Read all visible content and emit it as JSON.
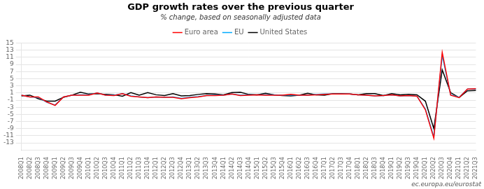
{
  "chart_data": {
    "type": "line",
    "title": "GDP growth rates over the previous quarter",
    "subtitle": "% change, based on seasonally adjusted data",
    "annotations": [
      "ec.europa.eu/eurostat"
    ],
    "categories": [
      "2008Q1",
      "2008Q2",
      "2008Q3",
      "2008Q4",
      "2009Q1",
      "2009Q2",
      "2009Q3",
      "2009Q4",
      "2010Q1",
      "2010Q2",
      "2010Q3",
      "2010Q4",
      "2011Q1",
      "2011Q2",
      "2011Q3",
      "2011Q4",
      "2012Q1",
      "2012Q2",
      "2012Q3",
      "2012Q4",
      "2013Q1",
      "2013Q2",
      "2013Q3",
      "2013Q4",
      "2014Q1",
      "2014Q2",
      "2014Q3",
      "2014Q4",
      "2015Q1",
      "2015Q2",
      "2015Q3",
      "2015Q4",
      "2016Q1",
      "2016Q2",
      "2016Q3",
      "2016Q4",
      "2017Q1",
      "2017Q2",
      "2017Q3",
      "2017Q4",
      "2018Q1",
      "2018Q2",
      "2018Q3",
      "2018Q4",
      "2019Q1",
      "2019Q2",
      "2019Q3",
      "2019Q4",
      "2020Q1",
      "2020Q2",
      "2020Q3",
      "2020Q4",
      "2021Q1",
      "2021Q2",
      "2021Q3"
    ],
    "series": [
      {
        "name": "United States",
        "color": "#000000",
        "values": [
          0.2,
          0.4,
          -0.6,
          -1.3,
          -1.3,
          -0.2,
          0.4,
          1.2,
          0.7,
          0.8,
          0.6,
          0.5,
          0.1,
          1.1,
          0.4,
          1.1,
          0.5,
          0.3,
          0.8,
          0.2,
          0.3,
          0.6,
          0.8,
          0.7,
          0.5,
          1.1,
          1.2,
          0.6,
          0.5,
          0.9,
          0.5,
          0.3,
          0.2,
          0.4,
          0.9,
          0.5,
          0.4,
          0.8,
          0.8,
          0.7,
          0.5,
          0.8,
          0.8,
          0.3,
          0.8,
          0.5,
          0.6,
          0.5,
          -1.3,
          -9.0,
          7.5,
          1.1,
          -0.3,
          1.6,
          1.7
        ]
      },
      {
        "name": "EU",
        "color": "#00aaff",
        "values": [
          0.4,
          -0.1,
          -0.2,
          -1.6,
          -2.4,
          -0.1,
          0.4,
          0.5,
          0.5,
          1.0,
          0.4,
          0.4,
          0.8,
          0.2,
          -0.1,
          -0.3,
          -0.1,
          -0.2,
          -0.1,
          -0.5,
          -0.2,
          0.0,
          0.3,
          0.4,
          0.4,
          0.7,
          0.4,
          0.5,
          0.5,
          0.5,
          0.5,
          0.4,
          0.5,
          0.4,
          0.4,
          0.6,
          0.7,
          0.7,
          0.7,
          0.7,
          0.5,
          0.4,
          0.2,
          0.3,
          0.5,
          0.2,
          0.3,
          0.1,
          -3.5,
          -11.3,
          11.5,
          0.5,
          -0.2,
          2.1,
          2.1
        ]
      },
      {
        "name": "Euro area",
        "color": "#ff0000",
        "values": [
          0.4,
          -0.1,
          -0.1,
          -1.5,
          -2.5,
          -0.1,
          0.4,
          0.4,
          0.4,
          1.0,
          0.4,
          0.3,
          0.8,
          0.1,
          -0.1,
          -0.3,
          -0.1,
          -0.2,
          -0.2,
          -0.6,
          -0.3,
          -0.1,
          0.3,
          0.3,
          0.4,
          0.7,
          0.3,
          0.4,
          0.5,
          0.4,
          0.4,
          0.4,
          0.6,
          0.4,
          0.4,
          0.5,
          0.6,
          0.7,
          0.7,
          0.7,
          0.5,
          0.4,
          0.2,
          0.3,
          0.5,
          0.2,
          0.3,
          0.1,
          -3.7,
          -11.7,
          12.4,
          0.4,
          -0.3,
          2.1,
          2.2
        ]
      }
    ],
    "ylim": [
      -15,
      15
    ],
    "yticks": [
      -13,
      -11,
      -9,
      -7,
      -5,
      -3,
      -1,
      1,
      3,
      5,
      7,
      9,
      11,
      13,
      15
    ],
    "grid": "y",
    "legend": "top"
  }
}
